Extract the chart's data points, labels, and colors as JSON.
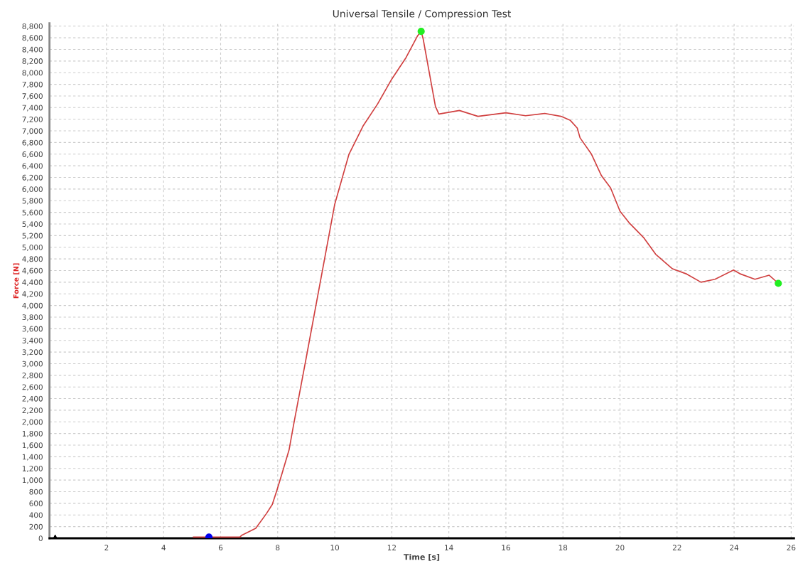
{
  "chart_data": {
    "type": "line",
    "title": "Universal Tensile / Compression Test",
    "xlabel": "Time [s]",
    "ylabel": "Force [N]",
    "series": [
      {
        "color": "#d04040",
        "marker": "none",
        "x": [
          5.04,
          6.0,
          6.68,
          6.73,
          7.23,
          7.6,
          7.81,
          7.97,
          8.15,
          8.4,
          8.55,
          9.0,
          10.0,
          10.5,
          11.0,
          11.5,
          12.0,
          12.5,
          12.9,
          13.03,
          13.1,
          13.53,
          13.65,
          14.37,
          15.02,
          16.0,
          16.69,
          17.36,
          17.93,
          18.26,
          18.5,
          18.6,
          19.0,
          19.35,
          19.67,
          20.0,
          20.34,
          20.84,
          21.25,
          21.84,
          22.34,
          22.84,
          23.33,
          23.98,
          24.23,
          24.73,
          25.23,
          25.55
        ],
        "values": [
          20,
          20,
          20,
          50,
          170,
          420,
          580,
          820,
          1110,
          1520,
          1930,
          3100,
          5740,
          6600,
          7090,
          7460,
          7890,
          8260,
          8630,
          8710,
          8580,
          7420,
          7290,
          7350,
          7250,
          7310,
          7260,
          7300,
          7250,
          7180,
          7050,
          6880,
          6600,
          6230,
          6020,
          5620,
          5410,
          5160,
          4880,
          4630,
          4540,
          4400,
          4450,
          4610,
          4540,
          4450,
          4520,
          4380
        ]
      },
      {
        "type": "scatter",
        "color": "#22ee22",
        "marker": "circle",
        "x": [
          13.03,
          25.55
        ],
        "values": [
          8710,
          4380
        ]
      },
      {
        "type": "scatter",
        "color": "#0000ee",
        "marker": "circle",
        "x": [
          5.59
        ],
        "values": [
          20
        ]
      },
      {
        "type": "scatter",
        "color": "#000000",
        "marker": "triangle",
        "x": [
          0.2
        ],
        "values": [
          0
        ]
      }
    ],
    "xlim": [
      0,
      26.1
    ],
    "ylim": [
      0,
      8850
    ],
    "xticks": [
      2,
      4,
      6,
      8,
      10,
      12,
      14,
      16,
      18,
      20,
      22,
      24,
      26
    ],
    "yticks": [
      0,
      200,
      400,
      600,
      800,
      {
        "value": 1000,
        "label": "1,000"
      },
      {
        "value": 1200,
        "label": "1,200"
      },
      {
        "value": 1400,
        "label": "1,400"
      },
      {
        "value": 1600,
        "label": "1,600"
      },
      {
        "value": 1800,
        "label": "1,800"
      },
      {
        "value": 2000,
        "label": "2,000"
      },
      {
        "value": 2200,
        "label": "2,200"
      },
      {
        "value": 2400,
        "label": "2,400"
      },
      {
        "value": 2600,
        "label": "2,600"
      },
      {
        "value": 2800,
        "label": "2,800"
      },
      {
        "value": 3000,
        "label": "3,000"
      },
      {
        "value": 3200,
        "label": "3,200"
      },
      {
        "value": 3400,
        "label": "3,400"
      },
      {
        "value": 3600,
        "label": "3,600"
      },
      {
        "value": 3800,
        "label": "3,800"
      },
      {
        "value": 4000,
        "label": "4,000"
      },
      {
        "value": 4200,
        "label": "4,200"
      },
      {
        "value": 4400,
        "label": "4,400"
      },
      {
        "value": 4600,
        "label": "4,600"
      },
      {
        "value": 4800,
        "label": "4,800"
      },
      {
        "value": 5000,
        "label": "5,000"
      },
      {
        "value": 5200,
        "label": "5,200"
      },
      {
        "value": 5400,
        "label": "5,400"
      },
      {
        "value": 5600,
        "label": "5,600"
      },
      {
        "value": 5800,
        "label": "5,800"
      },
      {
        "value": 6000,
        "label": "6,000"
      },
      {
        "value": 6200,
        "label": "6,200"
      },
      {
        "value": 6400,
        "label": "6,400"
      },
      {
        "value": 6600,
        "label": "6,600"
      },
      {
        "value": 6800,
        "label": "6,800"
      },
      {
        "value": 7000,
        "label": "7,000"
      },
      {
        "value": 7200,
        "label": "7,200"
      },
      {
        "value": 7400,
        "label": "7,400"
      },
      {
        "value": 7600,
        "label": "7,600"
      },
      {
        "value": 7800,
        "label": "7,800"
      },
      {
        "value": 8000,
        "label": "8,000"
      },
      {
        "value": 8200,
        "label": "8,200"
      },
      {
        "value": 8400,
        "label": "8,400"
      },
      {
        "value": 8600,
        "label": "8,600"
      },
      {
        "value": 8800,
        "label": "8,800"
      }
    ],
    "grid": true,
    "legend": false
  }
}
